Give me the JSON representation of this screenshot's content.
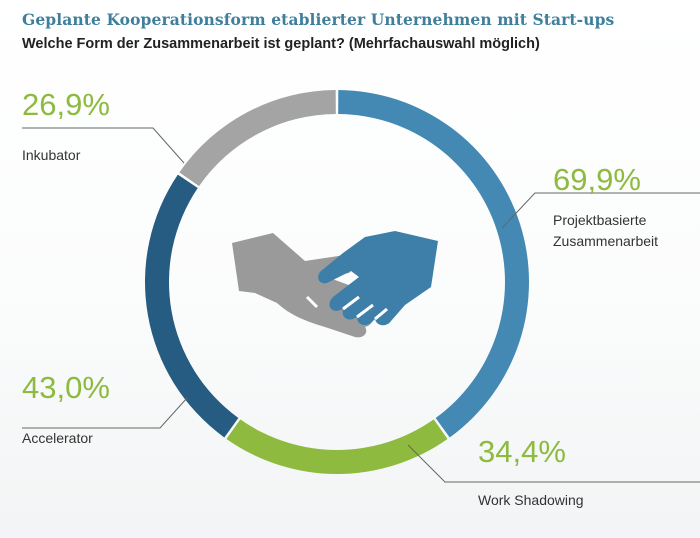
{
  "header": {
    "title": "Geplante Kooperationsform etablierter Unternehmen mit Start-ups",
    "subtitle": "Welche Form der Zusammenarbeit ist geplant? (Mehrfachauswahl möglich)"
  },
  "colors": {
    "title": "#3f7f9c",
    "value_text": "#8dba3f",
    "leader": "#666666",
    "hand_gray": "#9a9a9a",
    "hand_blue": "#3d7fa8"
  },
  "icon": {
    "center": "handshake-icon"
  },
  "chart_data": {
    "type": "donut",
    "segments": [
      {
        "label": "Projektbasierte Zusammenarbeit",
        "label_lines": [
          "Projektbasierte",
          "Zusammenarbeit"
        ],
        "value": 69.9,
        "value_text": "69,9%",
        "color": "#4389b4"
      },
      {
        "label": "Work Shadowing",
        "label_lines": [
          "Work Shadowing"
        ],
        "value": 34.4,
        "value_text": "34,4%",
        "color": "#8dba3f"
      },
      {
        "label": "Accelerator",
        "label_lines": [
          "Accelerator"
        ],
        "value": 43.0,
        "value_text": "43,0%",
        "color": "#265c82"
      },
      {
        "label": "Inkubator",
        "label_lines": [
          "Inkubator"
        ],
        "value": 26.9,
        "value_text": "26,9%",
        "color": "#a4a4a4"
      }
    ],
    "unit": "%",
    "legend": "none"
  }
}
